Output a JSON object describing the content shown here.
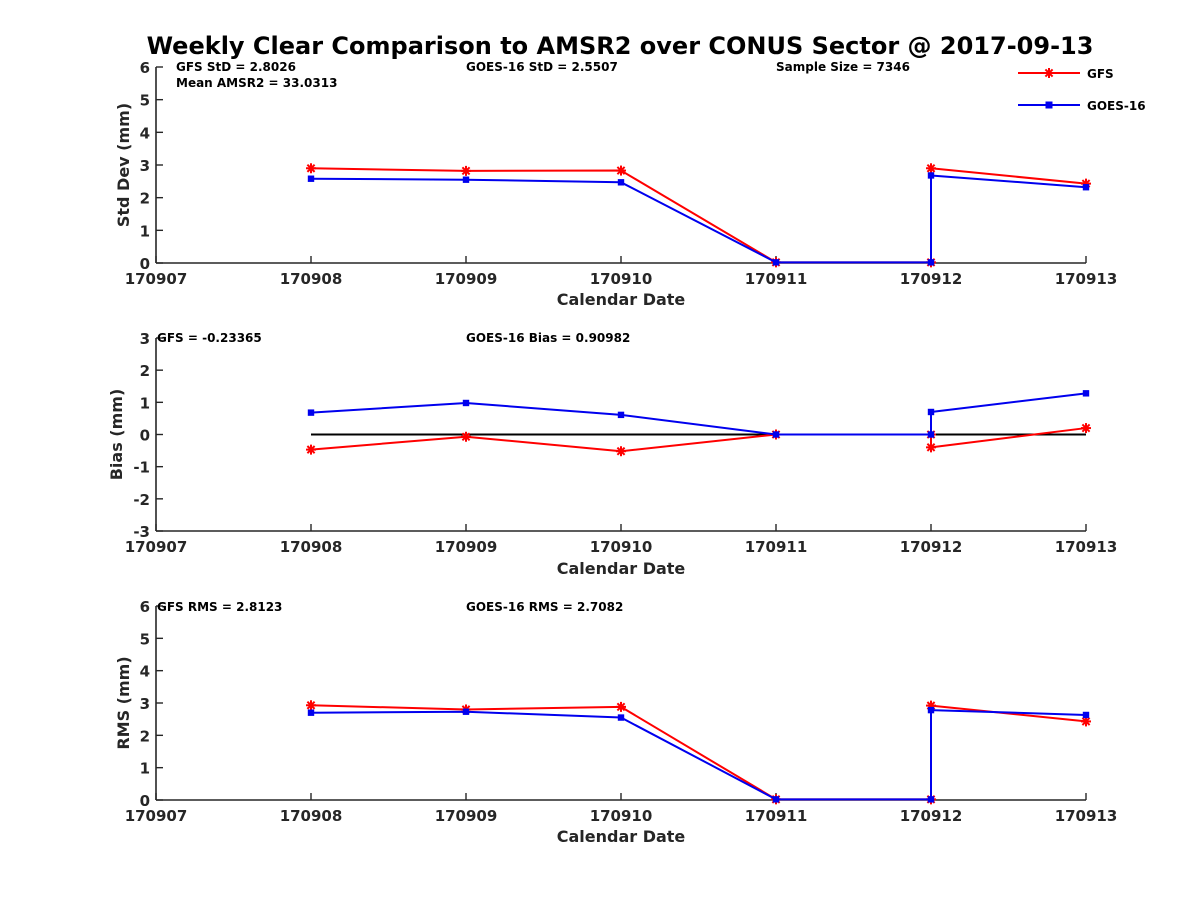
{
  "title": "Weekly Clear Comparison to AMSR2 over CONUS Sector @ 2017-09-13",
  "colors": {
    "gfs": "#ff0000",
    "goes": "#0000ee",
    "axis": "#262626"
  },
  "legend": [
    {
      "name": "GFS",
      "marker": "asterisk",
      "color": "#ff0000"
    },
    {
      "name": "GOES-16",
      "marker": "square",
      "color": "#0000ee"
    }
  ],
  "chart_data": [
    {
      "type": "line",
      "title": "Weekly Clear Comparison to AMSR2 over CONUS Sector @ 2017-09-13",
      "xlabel": "Calendar Date",
      "ylabel": "Std Dev (mm)",
      "x_ticks": [
        "170907",
        "170908",
        "170909",
        "170910",
        "170911",
        "170912",
        "170913"
      ],
      "y_ticks": [
        "0",
        "1",
        "2",
        "3",
        "4",
        "5",
        "6"
      ],
      "xlim": [
        170907,
        170913
      ],
      "ylim": [
        0,
        6
      ],
      "annotations": [
        "GFS StD = 2.8026",
        "Mean AMSR2 = 33.0313",
        "GOES-16 StD = 2.5507",
        "Sample Size = 7346"
      ],
      "zero_line": false,
      "legend_position": "top-right",
      "series": [
        {
          "name": "GFS",
          "points": [
            [
              170908,
              2.9
            ],
            [
              170909,
              2.82
            ],
            [
              170910,
              2.83
            ],
            [
              170911,
              0.02
            ],
            [
              170912,
              0.02
            ],
            [
              170912,
              2.9
            ],
            [
              170913,
              2.43
            ]
          ]
        },
        {
          "name": "GOES-16",
          "points": [
            [
              170908,
              2.58
            ],
            [
              170909,
              2.55
            ],
            [
              170910,
              2.47
            ],
            [
              170911,
              0.02
            ],
            [
              170912,
              0.02
            ],
            [
              170912,
              2.68
            ],
            [
              170913,
              2.32
            ]
          ]
        }
      ]
    },
    {
      "type": "line",
      "xlabel": "Calendar Date",
      "ylabel": "Bias (mm)",
      "x_ticks": [
        "170907",
        "170908",
        "170909",
        "170910",
        "170911",
        "170912",
        "170913"
      ],
      "y_ticks": [
        "-3",
        "-2",
        "-1",
        "0",
        "1",
        "2",
        "3"
      ],
      "xlim": [
        170907,
        170913
      ],
      "ylim": [
        -3,
        3
      ],
      "annotations": [
        "GFS = -0.23365",
        "GOES-16 Bias  = 0.90982"
      ],
      "zero_line": true,
      "series": [
        {
          "name": "GFS",
          "points": [
            [
              170908,
              -0.47
            ],
            [
              170909,
              -0.07
            ],
            [
              170910,
              -0.52
            ],
            [
              170911,
              0.0
            ],
            [
              170912,
              0.0
            ],
            [
              170912,
              -0.4
            ],
            [
              170913,
              0.2
            ]
          ]
        },
        {
          "name": "GOES-16",
          "points": [
            [
              170908,
              0.68
            ],
            [
              170909,
              0.98
            ],
            [
              170910,
              0.61
            ],
            [
              170911,
              0.0
            ],
            [
              170912,
              0.0
            ],
            [
              170912,
              0.7
            ],
            [
              170913,
              1.28
            ]
          ]
        }
      ]
    },
    {
      "type": "line",
      "xlabel": "Calendar Date",
      "ylabel": "RMS (mm)",
      "x_ticks": [
        "170907",
        "170908",
        "170909",
        "170910",
        "170911",
        "170912",
        "170913"
      ],
      "y_ticks": [
        "0",
        "1",
        "2",
        "3",
        "4",
        "5",
        "6"
      ],
      "xlim": [
        170907,
        170913
      ],
      "ylim": [
        0,
        6
      ],
      "annotations": [
        "GFS RMS = 2.8123",
        "GOES-16 RMS = 2.7082"
      ],
      "zero_line": false,
      "series": [
        {
          "name": "GFS",
          "points": [
            [
              170908,
              2.93
            ],
            [
              170909,
              2.8
            ],
            [
              170910,
              2.88
            ],
            [
              170911,
              0.02
            ],
            [
              170912,
              0.02
            ],
            [
              170912,
              2.92
            ],
            [
              170913,
              2.43
            ]
          ]
        },
        {
          "name": "GOES-16",
          "points": [
            [
              170908,
              2.7
            ],
            [
              170909,
              2.73
            ],
            [
              170910,
              2.55
            ],
            [
              170911,
              0.02
            ],
            [
              170912,
              0.02
            ],
            [
              170912,
              2.78
            ],
            [
              170913,
              2.63
            ]
          ]
        }
      ]
    }
  ]
}
